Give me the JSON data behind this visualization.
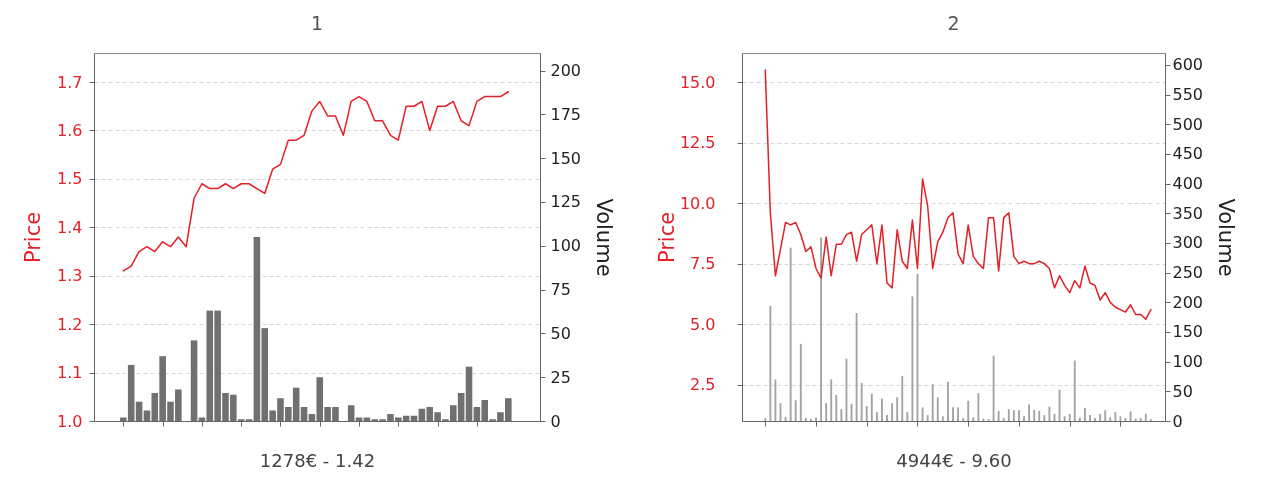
{
  "chart_data": [
    {
      "type": "line",
      "title": "1",
      "xlabel": "1278€ - 1.42",
      "ylabel": "Price",
      "y2label": "Volume",
      "categories": [
        null,
        null,
        null,
        null,
        null,
        null,
        null,
        null,
        null,
        null,
        null,
        null,
        null,
        null,
        null,
        null,
        null,
        null,
        null,
        null,
        null,
        null,
        null,
        null,
        null,
        null,
        null,
        null,
        null,
        null,
        null,
        null,
        null,
        null,
        null,
        null,
        null,
        null,
        null,
        null,
        null,
        null,
        null,
        null,
        null,
        null,
        null,
        null,
        null,
        null
      ],
      "series": [
        {
          "color": "#e41f26",
          "values": [
            1.31,
            1.32,
            1.35,
            1.36,
            1.35,
            1.37,
            1.36,
            1.38,
            1.36,
            1.46,
            1.49,
            1.48,
            1.48,
            1.49,
            1.48,
            1.49,
            1.49,
            1.48,
            1.47,
            1.52,
            1.53,
            1.58,
            1.58,
            1.59,
            1.64,
            1.66,
            1.63,
            1.63,
            1.59,
            1.66,
            1.67,
            1.66,
            1.62,
            1.62,
            1.59,
            1.58,
            1.65,
            1.65,
            1.66,
            1.6,
            1.65,
            1.65,
            1.66,
            1.62,
            1.61,
            1.66,
            1.67,
            1.67,
            1.67,
            1.68
          ]
        },
        {
          "type": "bar",
          "axis": "y2",
          "color": "#707070",
          "values": [
            2,
            32,
            11,
            6,
            16,
            37,
            11,
            18,
            null,
            46,
            2,
            63,
            63,
            16,
            15,
            1,
            1,
            105,
            53,
            6,
            13,
            8,
            19,
            8,
            4,
            25,
            8,
            8,
            null,
            9,
            2,
            2,
            1,
            1,
            4,
            2,
            3,
            3,
            7,
            8,
            5,
            1,
            9,
            16,
            31,
            8,
            12,
            1,
            5,
            13
          ]
        }
      ],
      "ylim": [
        1,
        1.76
      ],
      "yticks": [
        {
          "value": 1,
          "label": "1.0"
        },
        1.1,
        1.2,
        1.3,
        1.4,
        1.5,
        1.6,
        1.7
      ],
      "y2lim": [
        0,
        210
      ],
      "y2ticks": [
        0,
        25,
        50,
        75,
        100,
        125,
        150,
        175,
        200
      ],
      "grid": "y",
      "marker": "none",
      "line_style": "solid"
    },
    {
      "type": "line",
      "title": "2",
      "xlabel": "4944€ - 9.60",
      "ylabel": "Price",
      "y2label": "Volume",
      "categories": [
        null,
        null,
        null,
        null,
        null,
        null,
        null,
        null,
        null,
        null,
        null,
        null,
        null,
        null,
        null,
        null,
        null,
        null,
        null,
        null,
        null,
        null,
        null,
        null,
        null,
        null,
        null,
        null,
        null,
        null,
        null,
        null,
        null,
        null,
        null,
        null,
        null,
        null,
        null,
        null,
        null,
        null,
        null,
        null,
        null,
        null,
        null,
        null,
        null,
        null,
        null,
        null,
        null,
        null,
        null,
        null,
        null,
        null,
        null,
        null,
        null,
        null,
        null,
        null,
        null,
        null,
        null,
        null,
        null,
        null,
        null,
        null,
        null,
        null,
        null,
        null,
        null
      ],
      "series": [
        {
          "color": "#e41f26",
          "values": [
            15.5,
            9.6,
            7.0,
            8.1,
            9.2,
            9.1,
            9.2,
            8.7,
            8.0,
            8.2,
            7.3,
            6.9,
            8.6,
            7.0,
            8.3,
            8.3,
            8.7,
            8.8,
            7.6,
            8.7,
            8.9,
            9.1,
            7.5,
            9.1,
            6.7,
            6.5,
            8.9,
            7.6,
            7.3,
            9.3,
            7.3,
            11.0,
            9.9,
            7.3,
            8.4,
            8.8,
            9.4,
            9.6,
            7.9,
            7.5,
            9.1,
            7.8,
            7.5,
            7.3,
            9.4,
            9.4,
            7.2,
            9.4,
            9.6,
            7.8,
            7.5,
            7.6,
            7.5,
            7.5,
            7.6,
            7.5,
            7.3,
            6.5,
            7.0,
            6.6,
            6.3,
            6.8,
            6.5,
            7.4,
            6.7,
            6.6,
            6.0,
            6.3,
            5.9,
            5.7,
            5.6,
            5.5,
            5.8,
            5.4,
            5.4,
            5.2,
            5.6
          ]
        },
        {
          "type": "bar",
          "axis": "y2",
          "color": "#a3a3a3",
          "values": [
            5,
            194,
            70,
            30,
            7,
            292,
            35,
            130,
            5,
            4,
            6,
            309,
            30,
            70,
            44,
            20,
            105,
            29,
            182,
            64,
            25,
            46,
            15,
            38,
            10,
            30,
            40,
            76,
            15,
            210,
            248,
            23,
            10,
            62,
            40,
            8,
            66,
            23,
            23,
            5,
            34,
            6,
            47,
            4,
            3,
            110,
            17,
            5,
            20,
            18,
            18,
            8,
            28,
            19,
            17,
            10,
            24,
            12,
            53,
            8,
            12,
            102,
            6,
            22,
            10,
            5,
            12,
            18,
            6,
            15,
            8,
            5,
            16,
            4,
            5,
            12,
            3
          ]
        }
      ],
      "ylim": [
        1,
        16.2
      ],
      "yticks": [
        2.5,
        {
          "value": 5,
          "label": "5.0"
        },
        7.5,
        {
          "value": 10,
          "label": "10.0"
        },
        12.5,
        {
          "value": 15,
          "label": "15.0"
        }
      ],
      "y2lim": [
        0,
        620
      ],
      "y2ticks": [
        0,
        50,
        100,
        150,
        200,
        250,
        300,
        350,
        400,
        450,
        500,
        550,
        600
      ],
      "grid": "y",
      "marker": "none",
      "line_style": "solid"
    }
  ]
}
